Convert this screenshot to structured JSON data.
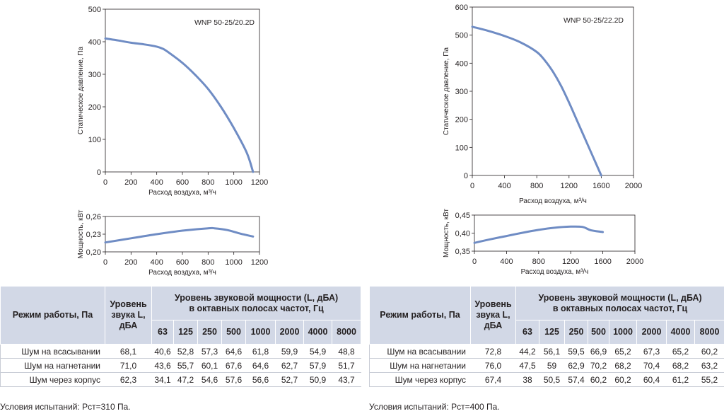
{
  "chart_data": [
    {
      "type": "line",
      "title": "WNP 50-25/20.2D",
      "xlabel": "Расход воздуха, м³/ч",
      "ylabel": "Статическое давление, Па",
      "xlim": [
        0,
        1200
      ],
      "ylim": [
        0,
        500
      ],
      "xticks": [
        "0",
        "200",
        "400",
        "600",
        "800",
        "1000",
        "1200"
      ],
      "yticks": [
        "0",
        "100",
        "200",
        "300",
        "400",
        "500"
      ],
      "grid": false,
      "series": [
        {
          "x": [
            0,
            100,
            200,
            300,
            400,
            450,
            500,
            600,
            700,
            800,
            900,
            1000,
            1100,
            1150
          ],
          "y": [
            410,
            404,
            397,
            392,
            385,
            378,
            365,
            335,
            298,
            255,
            200,
            135,
            60,
            0
          ]
        }
      ]
    },
    {
      "type": "line",
      "title": "",
      "xlabel": "Расход воздуха, м³/ч",
      "ylabel": "Мощность, кВт",
      "xlim": [
        0,
        1200
      ],
      "ylim": [
        0.2,
        0.26
      ],
      "xticks": [
        "0",
        "200",
        "400",
        "600",
        "800",
        "1000",
        "1200"
      ],
      "yticks": [
        "0,20",
        "0,23",
        "0,26"
      ],
      "grid": false,
      "series": [
        {
          "x": [
            0,
            200,
            400,
            600,
            800,
            850,
            950,
            1050,
            1150
          ],
          "y": [
            0.216,
            0.223,
            0.23,
            0.236,
            0.24,
            0.24,
            0.237,
            0.231,
            0.226
          ]
        }
      ]
    },
    {
      "type": "line",
      "title": "WNP 50-25/22.2D",
      "xlabel": "Расход воздуха, м³/ч",
      "ylabel": "Статическое давление, Па",
      "xlim": [
        0,
        2000
      ],
      "ylim": [
        0,
        600
      ],
      "xticks": [
        "0",
        "400",
        "800",
        "1200",
        "1600",
        "2000"
      ],
      "yticks": [
        "0",
        "100",
        "200",
        "300",
        "400",
        "500",
        "600"
      ],
      "grid": false,
      "series": [
        {
          "x": [
            0,
            200,
            400,
            600,
            800,
            900,
            1000,
            1100,
            1200,
            1300,
            1400,
            1500,
            1600
          ],
          "y": [
            530,
            515,
            497,
            474,
            440,
            410,
            370,
            320,
            260,
            195,
            130,
            65,
            0
          ]
        }
      ]
    },
    {
      "type": "line",
      "title": "",
      "xlabel": "Расход воздуха, м³/ч",
      "ylabel": "Мощность, кВт",
      "xlim": [
        0,
        2000
      ],
      "ylim": [
        0.35,
        0.45
      ],
      "xticks": [
        "0",
        "400",
        "800",
        "1200",
        "1600",
        "2000"
      ],
      "yticks": [
        "0,35",
        "0,40",
        "0,45"
      ],
      "grid": false,
      "series": [
        {
          "x": [
            0,
            200,
            400,
            600,
            800,
            1000,
            1200,
            1350,
            1450,
            1600
          ],
          "y": [
            0.373,
            0.383,
            0.392,
            0.401,
            0.409,
            0.415,
            0.418,
            0.417,
            0.408,
            0.403
          ]
        }
      ]
    }
  ],
  "style": {
    "line_color": "#6f8cc4",
    "table_header_bg": "#d2d8e6"
  },
  "tables": [
    {
      "mode_header": "Режим работы, Па",
      "level_header": "Уровень звука L, дБА",
      "power_header_line1": "Уровень звуковой мощности (L, дБА)",
      "power_header_line2": "в октавных полосах частот, Гц",
      "freqs": [
        "63",
        "125",
        "250",
        "500",
        "1000",
        "2000",
        "4000",
        "8000"
      ],
      "rows": [
        {
          "mode": "Шум на всасывании",
          "level": "68,1",
          "values": [
            "40,6",
            "52,8",
            "57,3",
            "64,6",
            "61,8",
            "59,9",
            "54,9",
            "48,8"
          ]
        },
        {
          "mode": "Шум на нагнетании",
          "level": "71,0",
          "values": [
            "43,6",
            "55,7",
            "60,1",
            "67,6",
            "64,6",
            "62,7",
            "57,9",
            "51,7"
          ]
        },
        {
          "mode": "Шум через корпус",
          "level": "62,3",
          "values": [
            "34,1",
            "47,2",
            "54,6",
            "57,6",
            "56,6",
            "52,7",
            "50,9",
            "43,7"
          ]
        }
      ],
      "conditions": "Условия испытаний: Рст=310 Па."
    },
    {
      "mode_header": "Режим работы, Па",
      "level_header": "Уровень звука L, дБА",
      "power_header_line1": "Уровень звуковой мощности (L, дБА)",
      "power_header_line2": "в октавных полосах частот, Гц",
      "freqs": [
        "63",
        "125",
        "250",
        "500",
        "1000",
        "2000",
        "4000",
        "8000"
      ],
      "rows": [
        {
          "mode": "Шум на всасывании",
          "level": "72,8",
          "values": [
            "44,2",
            "56,1",
            "59,5",
            "66,9",
            "65,2",
            "67,3",
            "65,2",
            "60,2"
          ]
        },
        {
          "mode": "Шум на нагнетании",
          "level": "76,0",
          "values": [
            "47,5",
            "59",
            "62,9",
            "70,2",
            "68,2",
            "70,4",
            "68,2",
            "63,2"
          ]
        },
        {
          "mode": "Шум через корпус",
          "level": "67,4",
          "values": [
            "38",
            "50,5",
            "57,4",
            "60,2",
            "60,2",
            "60,4",
            "61,2",
            "55,2"
          ]
        }
      ],
      "conditions": "Условия испытаний: Рст=400 Па."
    }
  ]
}
